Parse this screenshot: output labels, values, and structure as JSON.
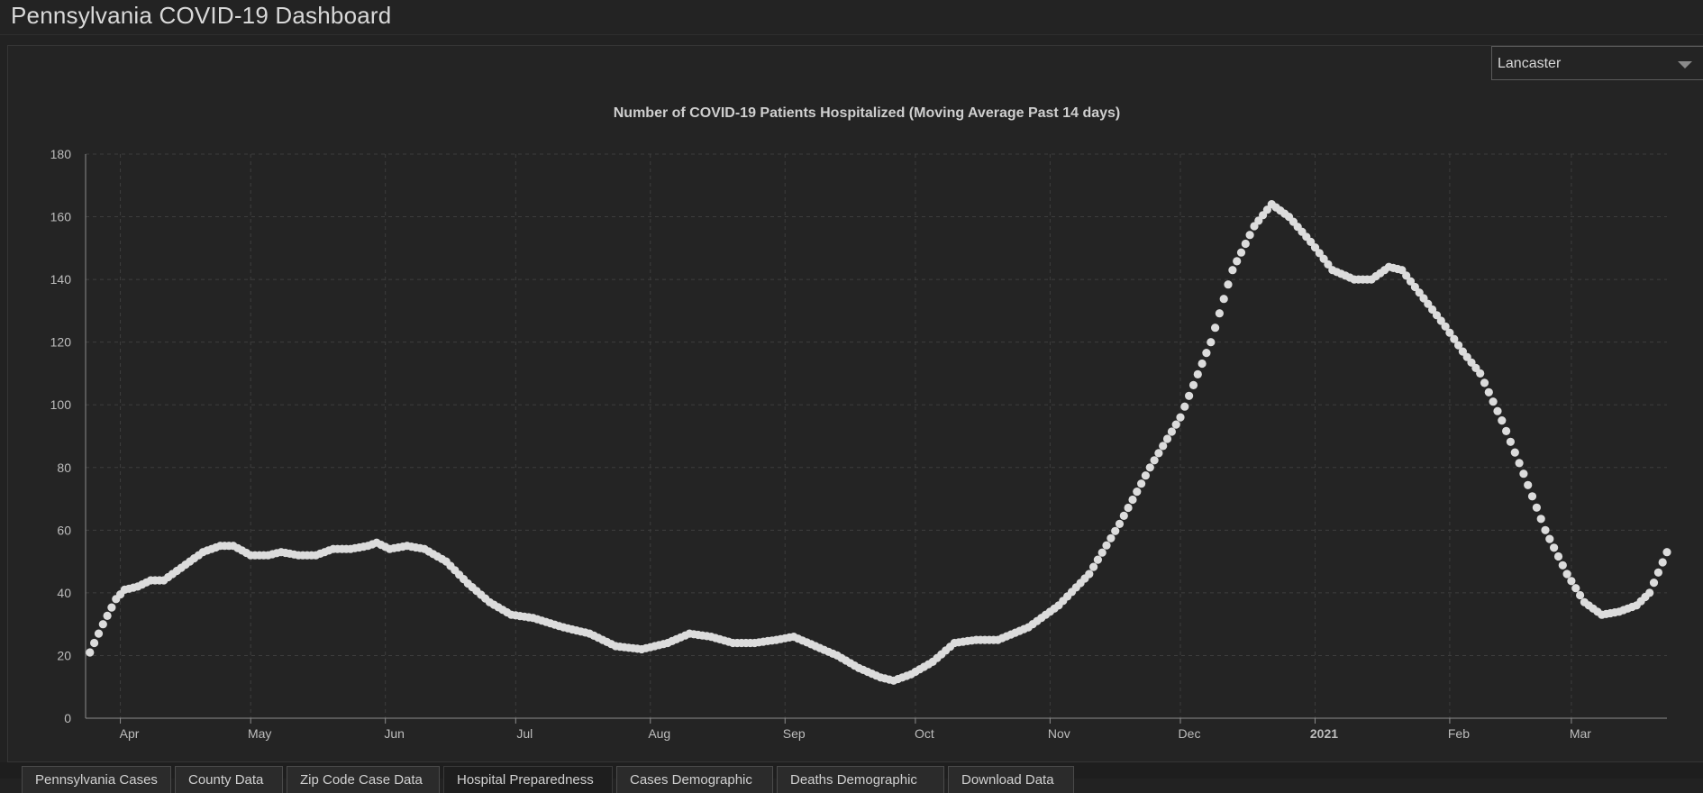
{
  "app": {
    "title": "Pennsylvania COVID-19 Dashboard"
  },
  "county_select": {
    "value": "Lancaster"
  },
  "tabs": [
    {
      "label": "Pennsylvania Cases",
      "active": false
    },
    {
      "label": "County Data",
      "active": false
    },
    {
      "label": "Zip Code Case Data",
      "active": false
    },
    {
      "label": "Hospital Preparedness",
      "active": true
    },
    {
      "label": "Cases Demographic",
      "active": false
    },
    {
      "label": "Deaths Demographic",
      "active": false
    },
    {
      "label": "Download Data",
      "active": false
    }
  ],
  "colors": {
    "point": "#dcdcdc",
    "grid": "#3d3d3d",
    "axis": "#8c8c8c",
    "background": "#242424"
  },
  "chart_data": {
    "type": "scatter",
    "title": "Number of COVID-19 Patients Hospitalized (Moving Average Past 14 days)",
    "xlabel": "",
    "ylabel": "",
    "ylim": [
      0,
      180
    ],
    "yticks": [
      0,
      20,
      40,
      60,
      80,
      100,
      120,
      140,
      160,
      180
    ],
    "xlim": [
      "2020-03-24",
      "2021-03-23"
    ],
    "xticks": [
      {
        "date": "2020-04-01",
        "label": "Apr",
        "bold": false
      },
      {
        "date": "2020-05-01",
        "label": "May",
        "bold": false
      },
      {
        "date": "2020-06-01",
        "label": "Jun",
        "bold": false
      },
      {
        "date": "2020-07-01",
        "label": "Jul",
        "bold": false
      },
      {
        "date": "2020-08-01",
        "label": "Aug",
        "bold": false
      },
      {
        "date": "2020-09-01",
        "label": "Sep",
        "bold": false
      },
      {
        "date": "2020-10-01",
        "label": "Oct",
        "bold": false
      },
      {
        "date": "2020-11-01",
        "label": "Nov",
        "bold": false
      },
      {
        "date": "2020-12-01",
        "label": "Dec",
        "bold": false
      },
      {
        "date": "2021-01-01",
        "label": "2021",
        "bold": true
      },
      {
        "date": "2021-02-01",
        "label": "Feb",
        "bold": false
      },
      {
        "date": "2021-03-01",
        "label": "Mar",
        "bold": false
      }
    ],
    "grid": true,
    "series": [
      {
        "start_date": "2020-03-25",
        "end_date": "2021-03-23",
        "key_points": [
          [
            "2020-03-25",
            21
          ],
          [
            "2020-03-28",
            30
          ],
          [
            "2020-03-31",
            38
          ],
          [
            "2020-04-02",
            41
          ],
          [
            "2020-04-05",
            42
          ],
          [
            "2020-04-08",
            44
          ],
          [
            "2020-04-11",
            44
          ],
          [
            "2020-04-15",
            48
          ],
          [
            "2020-04-20",
            53
          ],
          [
            "2020-04-24",
            55
          ],
          [
            "2020-04-27",
            55
          ],
          [
            "2020-05-01",
            52
          ],
          [
            "2020-05-05",
            52
          ],
          [
            "2020-05-08",
            53
          ],
          [
            "2020-05-12",
            52
          ],
          [
            "2020-05-16",
            52
          ],
          [
            "2020-05-20",
            54
          ],
          [
            "2020-05-24",
            54
          ],
          [
            "2020-05-28",
            55
          ],
          [
            "2020-05-30",
            56
          ],
          [
            "2020-06-02",
            54
          ],
          [
            "2020-06-06",
            55
          ],
          [
            "2020-06-10",
            54
          ],
          [
            "2020-06-15",
            50
          ],
          [
            "2020-06-20",
            43
          ],
          [
            "2020-06-25",
            37
          ],
          [
            "2020-06-30",
            33
          ],
          [
            "2020-07-05",
            32
          ],
          [
            "2020-07-12",
            29
          ],
          [
            "2020-07-18",
            27
          ],
          [
            "2020-07-24",
            23
          ],
          [
            "2020-07-30",
            22
          ],
          [
            "2020-08-05",
            24
          ],
          [
            "2020-08-10",
            27
          ],
          [
            "2020-08-15",
            26
          ],
          [
            "2020-08-20",
            24
          ],
          [
            "2020-08-25",
            24
          ],
          [
            "2020-08-30",
            25
          ],
          [
            "2020-09-03",
            26
          ],
          [
            "2020-09-08",
            23
          ],
          [
            "2020-09-13",
            20
          ],
          [
            "2020-09-18",
            16
          ],
          [
            "2020-09-23",
            13
          ],
          [
            "2020-09-26",
            12
          ],
          [
            "2020-09-30",
            14
          ],
          [
            "2020-10-05",
            18
          ],
          [
            "2020-10-10",
            24
          ],
          [
            "2020-10-15",
            25
          ],
          [
            "2020-10-20",
            25
          ],
          [
            "2020-10-27",
            29
          ],
          [
            "2020-11-03",
            36
          ],
          [
            "2020-11-10",
            46
          ],
          [
            "2020-11-17",
            62
          ],
          [
            "2020-11-24",
            80
          ],
          [
            "2020-12-01",
            96
          ],
          [
            "2020-12-08",
            120
          ],
          [
            "2020-12-13",
            143
          ],
          [
            "2020-12-18",
            157
          ],
          [
            "2020-12-22",
            164
          ],
          [
            "2020-12-26",
            160
          ],
          [
            "2020-12-31",
            152
          ],
          [
            "2021-01-05",
            143
          ],
          [
            "2021-01-10",
            140
          ],
          [
            "2021-01-14",
            140
          ],
          [
            "2021-01-18",
            144
          ],
          [
            "2021-01-21",
            143
          ],
          [
            "2021-01-26",
            134
          ],
          [
            "2021-01-31",
            125
          ],
          [
            "2021-02-04",
            117
          ],
          [
            "2021-02-08",
            110
          ],
          [
            "2021-02-13",
            95
          ],
          [
            "2021-02-18",
            78
          ],
          [
            "2021-02-23",
            60
          ],
          [
            "2021-02-28",
            46
          ],
          [
            "2021-03-04",
            37
          ],
          [
            "2021-03-08",
            33
          ],
          [
            "2021-03-12",
            34
          ],
          [
            "2021-03-16",
            36
          ],
          [
            "2021-03-19",
            40
          ],
          [
            "2021-03-23",
            53
          ]
        ]
      }
    ]
  }
}
